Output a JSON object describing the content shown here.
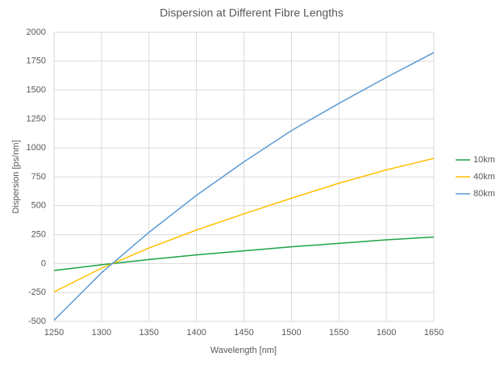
{
  "chart_data": {
    "type": "line",
    "title": "Dispersion at Different Fibre Lengths",
    "x_label": "Wavelength [nm]",
    "y_label": "Dispersion [ps/nm]",
    "x": [
      1250,
      1300,
      1350,
      1400,
      1450,
      1500,
      1550,
      1600,
      1650
    ],
    "series": [
      {
        "name": "10km",
        "color": "#1ea345",
        "values": [
          -60,
          -10,
          35,
          75,
          110,
          145,
          175,
          205,
          230
        ]
      },
      {
        "name": "40km",
        "color": "#ffc000",
        "values": [
          -245,
          -40,
          135,
          290,
          430,
          565,
          695,
          810,
          910
        ]
      },
      {
        "name": "80km",
        "color": "#5b9bd5",
        "values": [
          -490,
          -80,
          270,
          590,
          880,
          1150,
          1385,
          1610,
          1825
        ]
      }
    ],
    "xlim": [
      1250,
      1650
    ],
    "xticks": [
      1250,
      1300,
      1350,
      1400,
      1450,
      1500,
      1550,
      1600,
      1650
    ],
    "ylim": [
      -500,
      2000
    ],
    "yticks": [
      -500,
      -250,
      0,
      250,
      500,
      750,
      1000,
      1250,
      1500,
      1750,
      2000
    ],
    "grid": true,
    "legend": "right"
  }
}
